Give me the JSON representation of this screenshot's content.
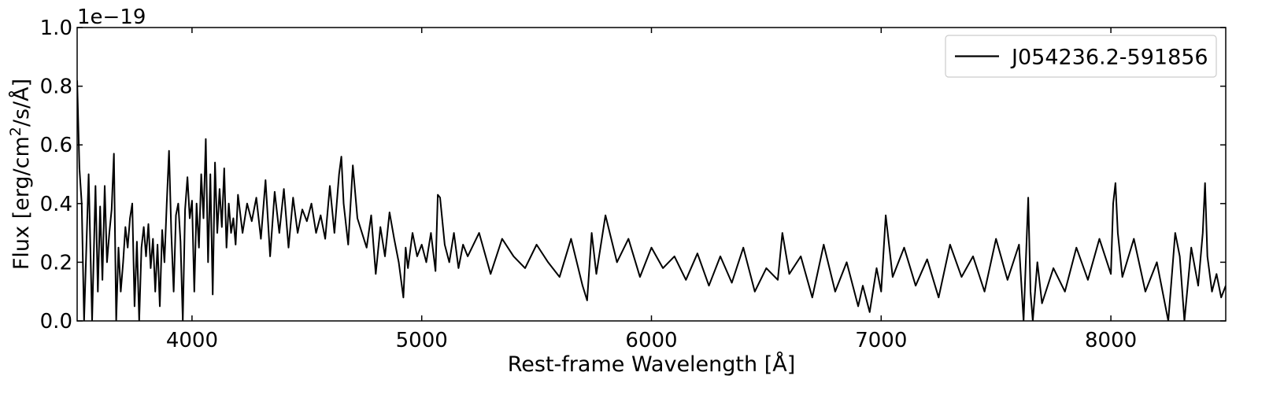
{
  "chart_data": {
    "type": "line",
    "xlabel": "Rest-frame Wavelength [Å]",
    "ylabel": "Flux [erg/cm²/s/Å]",
    "offset_text": "1e−19",
    "xlim": [
      3500,
      8500
    ],
    "ylim": [
      0.0,
      1.0
    ],
    "x_ticks": [
      4000,
      5000,
      6000,
      7000,
      8000
    ],
    "x_tick_labels": [
      "4000",
      "5000",
      "6000",
      "7000",
      "8000"
    ],
    "y_ticks": [
      0.0,
      0.2,
      0.4,
      0.6,
      0.8,
      1.0
    ],
    "y_tick_labels": [
      "0.0",
      "0.2",
      "0.4",
      "0.6",
      "0.8",
      "1.0"
    ],
    "grid": false,
    "legend_position": "top-right",
    "series": [
      {
        "name": "J054236.2-591856",
        "color": "#000000",
        "x": [
          3500,
          3510,
          3520,
          3530,
          3550,
          3565,
          3580,
          3590,
          3600,
          3610,
          3620,
          3630,
          3640,
          3650,
          3660,
          3670,
          3680,
          3690,
          3700,
          3710,
          3720,
          3730,
          3740,
          3750,
          3760,
          3770,
          3780,
          3790,
          3800,
          3810,
          3820,
          3830,
          3840,
          3850,
          3860,
          3870,
          3880,
          3890,
          3900,
          3910,
          3920,
          3930,
          3940,
          3950,
          3960,
          3970,
          3980,
          3990,
          4000,
          4010,
          4020,
          4030,
          4040,
          4050,
          4060,
          4070,
          4080,
          4090,
          4100,
          4110,
          4120,
          4130,
          4140,
          4150,
          4160,
          4170,
          4180,
          4190,
          4200,
          4220,
          4240,
          4260,
          4280,
          4300,
          4320,
          4340,
          4360,
          4380,
          4400,
          4420,
          4440,
          4460,
          4480,
          4500,
          4520,
          4540,
          4560,
          4580,
          4600,
          4620,
          4640,
          4650,
          4660,
          4680,
          4700,
          4720,
          4740,
          4760,
          4780,
          4800,
          4820,
          4840,
          4860,
          4880,
          4900,
          4920,
          4930,
          4940,
          4960,
          4980,
          5000,
          5020,
          5040,
          5060,
          5070,
          5080,
          5100,
          5120,
          5140,
          5160,
          5180,
          5200,
          5250,
          5300,
          5350,
          5400,
          5450,
          5500,
          5550,
          5600,
          5650,
          5700,
          5720,
          5740,
          5760,
          5800,
          5850,
          5900,
          5950,
          6000,
          6050,
          6100,
          6150,
          6200,
          6250,
          6300,
          6350,
          6400,
          6450,
          6500,
          6550,
          6570,
          6600,
          6650,
          6700,
          6750,
          6800,
          6850,
          6900,
          6920,
          6950,
          6980,
          7000,
          7020,
          7050,
          7100,
          7150,
          7200,
          7250,
          7300,
          7350,
          7400,
          7450,
          7500,
          7550,
          7600,
          7620,
          7640,
          7650,
          7660,
          7680,
          7700,
          7750,
          7800,
          7850,
          7900,
          7950,
          8000,
          8010,
          8020,
          8030,
          8050,
          8100,
          8150,
          8200,
          8250,
          8280,
          8300,
          8320,
          8350,
          8380,
          8400,
          8410,
          8420,
          8440,
          8460,
          8480,
          8500
        ],
        "y": [
          0.82,
          0.52,
          0.4,
          0.0,
          0.5,
          0.0,
          0.46,
          0.1,
          0.39,
          0.14,
          0.46,
          0.2,
          0.3,
          0.38,
          0.57,
          0.0,
          0.25,
          0.1,
          0.2,
          0.32,
          0.25,
          0.35,
          0.4,
          0.05,
          0.27,
          0.0,
          0.25,
          0.32,
          0.22,
          0.33,
          0.18,
          0.28,
          0.1,
          0.26,
          0.05,
          0.31,
          0.2,
          0.4,
          0.58,
          0.3,
          0.1,
          0.36,
          0.4,
          0.27,
          0.0,
          0.38,
          0.49,
          0.35,
          0.41,
          0.1,
          0.4,
          0.25,
          0.5,
          0.35,
          0.62,
          0.2,
          0.5,
          0.09,
          0.54,
          0.3,
          0.45,
          0.32,
          0.52,
          0.25,
          0.4,
          0.3,
          0.35,
          0.26,
          0.43,
          0.3,
          0.4,
          0.34,
          0.42,
          0.28,
          0.48,
          0.22,
          0.44,
          0.3,
          0.45,
          0.25,
          0.42,
          0.3,
          0.38,
          0.34,
          0.4,
          0.3,
          0.36,
          0.28,
          0.46,
          0.3,
          0.5,
          0.56,
          0.4,
          0.26,
          0.53,
          0.35,
          0.3,
          0.25,
          0.36,
          0.16,
          0.32,
          0.22,
          0.37,
          0.28,
          0.2,
          0.08,
          0.25,
          0.18,
          0.3,
          0.22,
          0.26,
          0.2,
          0.3,
          0.17,
          0.43,
          0.42,
          0.26,
          0.2,
          0.3,
          0.18,
          0.26,
          0.22,
          0.3,
          0.16,
          0.28,
          0.22,
          0.18,
          0.26,
          0.2,
          0.15,
          0.28,
          0.12,
          0.07,
          0.3,
          0.16,
          0.36,
          0.2,
          0.28,
          0.15,
          0.25,
          0.18,
          0.22,
          0.14,
          0.23,
          0.12,
          0.22,
          0.13,
          0.25,
          0.1,
          0.18,
          0.14,
          0.3,
          0.16,
          0.22,
          0.08,
          0.26,
          0.1,
          0.2,
          0.05,
          0.12,
          0.03,
          0.18,
          0.1,
          0.36,
          0.15,
          0.25,
          0.12,
          0.21,
          0.08,
          0.26,
          0.15,
          0.22,
          0.1,
          0.28,
          0.14,
          0.26,
          0.0,
          0.42,
          0.1,
          0.0,
          0.2,
          0.06,
          0.18,
          0.1,
          0.25,
          0.14,
          0.28,
          0.16,
          0.4,
          0.47,
          0.3,
          0.15,
          0.28,
          0.1,
          0.2,
          0.0,
          0.3,
          0.22,
          0.0,
          0.25,
          0.12,
          0.3,
          0.47,
          0.22,
          0.1,
          0.16,
          0.08,
          0.12
        ]
      }
    ]
  }
}
